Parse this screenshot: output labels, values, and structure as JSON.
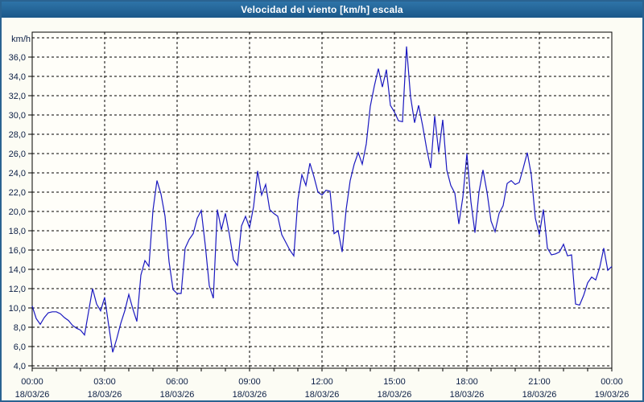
{
  "title": "Velocidad del viento [km/h] escala",
  "colors": {
    "titlebar_top": "#2e74a8",
    "titlebar_bottom": "#1b5889",
    "window_border": "#2a6391",
    "background": "#fcfcf4",
    "plot_background": "#fffef9",
    "grid": "#000000",
    "axis_text": "#0c1f45",
    "line": "#1a18c0"
  },
  "chart_data": {
    "type": "line",
    "title": "Velocidad del viento [km/h] escala",
    "xlabel": "",
    "ylabel": "km/h",
    "ylim": [
      4,
      38
    ],
    "y_tick_step": 2,
    "grid": "dashed",
    "legend_position": "none",
    "y_tick_labels": [
      "4,0",
      "6,0",
      "8,0",
      "10,0",
      "12,0",
      "14,0",
      "16,0",
      "18,0",
      "20,0",
      "22,0",
      "24,0",
      "26,0",
      "28,0",
      "30,0",
      "32,0",
      "34,0",
      "36,0"
    ],
    "x_ticks": [
      {
        "time": "00:00",
        "date": "18/03/26"
      },
      {
        "time": "03:00",
        "date": "18/03/26"
      },
      {
        "time": "06:00",
        "date": "18/03/26"
      },
      {
        "time": "09:00",
        "date": "18/03/26"
      },
      {
        "time": "12:00",
        "date": "18/03/26"
      },
      {
        "time": "15:00",
        "date": "18/03/26"
      },
      {
        "time": "18:00",
        "date": "18/03/26"
      },
      {
        "time": "21:00",
        "date": "18/03/26"
      },
      {
        "time": "00:00",
        "date": "19/03/26"
      }
    ],
    "minor_x_tick_hours": 1,
    "series": [
      {
        "name": "Velocidad del viento",
        "unit": "km/h",
        "start_time": "00:00",
        "interval_minutes": 10,
        "values": [
          10.2,
          8.9,
          8.3,
          9.0,
          9.5,
          9.6,
          9.6,
          9.4,
          9.0,
          8.7,
          8.2,
          7.9,
          7.7,
          7.2,
          9.6,
          12.0,
          10.4,
          9.7,
          11.1,
          8.2,
          5.4,
          6.8,
          8.4,
          9.7,
          11.4,
          9.9,
          8.6,
          13.4,
          14.9,
          14.3,
          20.1,
          23.2,
          21.8,
          19.5,
          14.8,
          11.9,
          11.5,
          11.5,
          16.2,
          17.1,
          17.7,
          19.3,
          20.1,
          16.5,
          12.3,
          11.0,
          20.2,
          18.1,
          19.8,
          17.6,
          15.0,
          14.4,
          18.5,
          19.5,
          18.3,
          20.5,
          24.2,
          21.7,
          22.8,
          20.2,
          19.8,
          19.5,
          17.6,
          16.8,
          16.0,
          15.4,
          21.2,
          23.8,
          22.7,
          25.0,
          23.6,
          22.0,
          21.7,
          22.2,
          22.1,
          17.7,
          18.0,
          15.8,
          20.2,
          23.2,
          24.9,
          26.1,
          24.9,
          27.0,
          30.9,
          33.0,
          34.8,
          32.9,
          34.7,
          31.0,
          30.3,
          29.4,
          29.3,
          37.1,
          31.9,
          29.2,
          31.0,
          28.9,
          26.5,
          24.5,
          29.9,
          26.1,
          29.5,
          24.3,
          22.7,
          21.9,
          18.7,
          21.5,
          26.0,
          21.0,
          17.8,
          22.0,
          24.3,
          22.0,
          19.0,
          17.9,
          19.8,
          20.6,
          22.9,
          23.2,
          22.8,
          23.0,
          24.5,
          26.1,
          23.8,
          19.3,
          17.6,
          20.2,
          16.2,
          15.5,
          15.6,
          15.8,
          16.6,
          15.4,
          15.5,
          10.4,
          10.3,
          11.3,
          12.6,
          13.2,
          12.9,
          14.2,
          16.2,
          13.9,
          14.3
        ]
      }
    ]
  }
}
